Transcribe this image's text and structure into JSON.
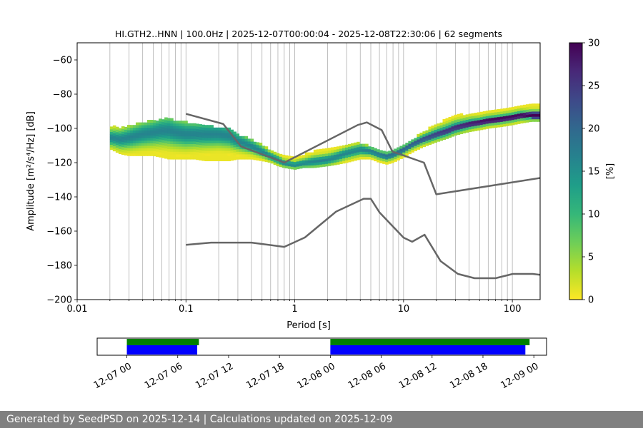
{
  "footer": {
    "text": "Generated by SeedPSD on 2025-12-14 | Calculations updated on 2025-12-09"
  },
  "colors": {
    "noise_model": "#666666",
    "avail_green": "#008000",
    "avail_blue": "#0000ff",
    "grid": "#b0b0b0",
    "viridis": [
      "#fde725",
      "#b5de2b",
      "#6ece58",
      "#35b779",
      "#1f9e89",
      "#26828e",
      "#31688e",
      "#3e4989",
      "#482878",
      "#440154"
    ]
  },
  "chart_data": [
    {
      "type": "heatmap",
      "title": "HI.GTH2..HNN | 100.0Hz | 2025-12-07T00:00:04 - 2025-12-08T22:30:06 | 62 segments",
      "xlabel": "Period [s]",
      "ylabel": "Amplitude [m²/s⁴/Hz] [dB]",
      "xscale": "log",
      "xlim": [
        0.01,
        180
      ],
      "ylim": [
        -200,
        -50
      ],
      "xticks": [
        0.01,
        0.1,
        1,
        10,
        100
      ],
      "xtick_labels": [
        "0.01",
        "0.1",
        "1",
        "10",
        "100"
      ],
      "yticks": [
        -60,
        -80,
        -100,
        -120,
        -140,
        -160,
        -180,
        -200
      ],
      "ytick_labels": [
        "−60",
        "−80",
        "−100",
        "−120",
        "−140",
        "−160",
        "−180",
        "−200"
      ],
      "grid": true,
      "colorbar": {
        "label": "[%]",
        "min": 0,
        "max": 30,
        "ticks": [
          0,
          5,
          10,
          15,
          20,
          25,
          30
        ],
        "tick_labels": [
          "0",
          "5",
          "10",
          "15",
          "20",
          "25",
          "30"
        ]
      },
      "psd_mode": {
        "period": [
          0.02,
          0.025,
          0.03,
          0.04,
          0.05,
          0.06,
          0.07,
          0.08,
          0.1,
          0.12,
          0.15,
          0.2,
          0.25,
          0.3,
          0.4,
          0.5,
          0.6,
          0.7,
          0.8,
          1.0,
          1.2,
          1.5,
          2.0,
          2.5,
          3.0,
          4.0,
          5.0,
          6.0,
          7.0,
          8.0,
          10,
          12,
          15,
          20,
          25,
          30,
          40,
          50,
          60,
          80,
          100,
          120,
          150,
          180
        ],
        "amplitude_db": [
          -106,
          -107,
          -106,
          -104,
          -103,
          -102,
          -102,
          -103,
          -104,
          -104,
          -104,
          -104,
          -105,
          -108,
          -111,
          -114,
          -117,
          -119,
          -121,
          -122,
          -121,
          -120,
          -119,
          -117,
          -115,
          -113,
          -114,
          -116,
          -117,
          -116,
          -113,
          -110,
          -107,
          -104,
          -102,
          -100,
          -98,
          -97,
          -96,
          -95,
          -94,
          -93,
          -93,
          -93
        ]
      },
      "psd_spread": {
        "upper_db": [
          -99,
          -100,
          -99,
          -97,
          -96,
          -95,
          -95,
          -96,
          -97,
          -98,
          -99,
          -100,
          -101,
          -104,
          -107,
          -110,
          -113,
          -115,
          -117,
          -118,
          -116,
          -114,
          -113,
          -112,
          -111,
          -109,
          -111,
          -113,
          -114,
          -113,
          -110,
          -107,
          -103,
          -98,
          -95,
          -93,
          -92,
          -92,
          -91,
          -90,
          -89,
          -88,
          -87,
          -87
        ],
        "lower_db": [
          -112,
          -115,
          -116,
          -116,
          -116,
          -117,
          -118,
          -118,
          -118,
          -118,
          -119,
          -119,
          -119,
          -118,
          -118,
          -119,
          -120,
          -122,
          -123,
          -124,
          -123,
          -123,
          -122,
          -121,
          -120,
          -118,
          -118,
          -120,
          -121,
          -120,
          -117,
          -114,
          -111,
          -108,
          -106,
          -104,
          -102,
          -101,
          -100,
          -99,
          -98,
          -97,
          -96,
          -96
        ]
      },
      "series": [
        {
          "name": "high noise model",
          "x": [
            0.1,
            0.22,
            0.32,
            0.8,
            3.8,
            4.6,
            6.3,
            7.9,
            15.4,
            20,
            354.8
          ],
          "y": [
            -91.5,
            -97.4,
            -110.5,
            -120,
            -98,
            -96.5,
            -101,
            -113.5,
            -120,
            -138.5,
            -126
          ]
        },
        {
          "name": "low noise model",
          "x": [
            0.1,
            0.17,
            0.4,
            0.8,
            1.24,
            2.4,
            4.3,
            5.0,
            6.0,
            10,
            12,
            15.6,
            21.9,
            31.6,
            45,
            70,
            101,
            154,
            328
          ],
          "y": [
            -168,
            -166.7,
            -166.7,
            -169.2,
            -163.7,
            -148.6,
            -141.1,
            -141.1,
            -149,
            -163.8,
            -166.2,
            -162.1,
            -177.5,
            -185,
            -187.5,
            -187.5,
            -185,
            -185,
            -187.5
          ]
        }
      ]
    },
    {
      "type": "timeline",
      "name": "data availability",
      "xlim_hours": [
        -3.5,
        49.5
      ],
      "xtick_hours": [
        0,
        6,
        12,
        18,
        24,
        30,
        36,
        42,
        48
      ],
      "xtick_labels": [
        "12-07 00",
        "12-07 06",
        "12-07 12",
        "12-07 18",
        "12-08 00",
        "12-08 06",
        "12-08 12",
        "12-08 18",
        "12-09 00"
      ],
      "bars": [
        {
          "name": "gaps-green",
          "color": "green",
          "segments": [
            [
              0,
              8.5
            ],
            [
              24,
              47.5
            ]
          ]
        },
        {
          "name": "psd-blue",
          "color": "blue",
          "segments": [
            [
              0,
              8.3
            ],
            [
              24,
              47.0
            ]
          ]
        }
      ]
    }
  ]
}
